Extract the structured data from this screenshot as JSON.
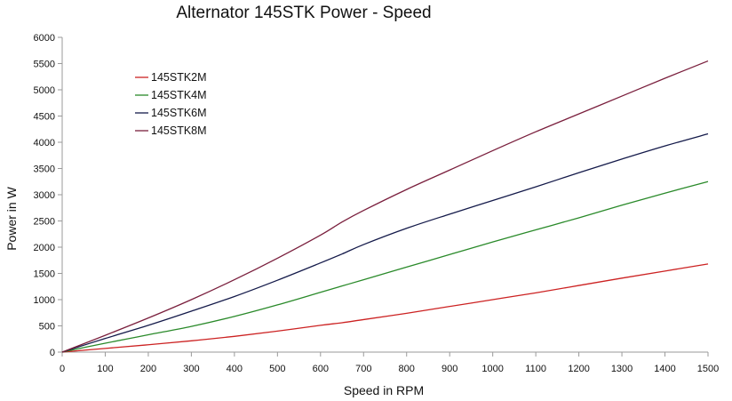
{
  "chart_data": {
    "type": "line",
    "title": "Alternator 145STK Power - Speed",
    "xlabel": "Speed in RPM",
    "ylabel": "Power in W",
    "xlim": [
      0,
      1500
    ],
    "ylim": [
      0,
      6000
    ],
    "x_ticks": [
      "0",
      "100",
      "200",
      "300",
      "400",
      "500",
      "600",
      "700",
      "800",
      "900",
      "1000",
      "1100",
      "1200",
      "1300",
      "1400",
      "1500"
    ],
    "y_ticks": [
      "0",
      "500",
      "1000",
      "1500",
      "2000",
      "2500",
      "3000",
      "3500",
      "4000",
      "4500",
      "5000",
      "5500",
      "6000"
    ],
    "grid": false,
    "legend_position": "top-left",
    "x": [
      0,
      100,
      200,
      300,
      400,
      500,
      600,
      650,
      700,
      800,
      900,
      1000,
      1100,
      1200,
      1300,
      1400,
      1500
    ],
    "series": [
      {
        "name": "145STK2M",
        "color": "#cc2222",
        "values": [
          0,
          70,
          140,
          215,
          300,
          400,
          510,
          560,
          620,
          740,
          870,
          1000,
          1130,
          1270,
          1410,
          1545,
          1680
        ]
      },
      {
        "name": "145STK4M",
        "color": "#2a8a2a",
        "values": [
          0,
          170,
          330,
          490,
          680,
          900,
          1140,
          1260,
          1380,
          1620,
          1860,
          2100,
          2330,
          2560,
          2800,
          3030,
          3250
        ]
      },
      {
        "name": "145STK6M",
        "color": "#141a4a",
        "values": [
          0,
          260,
          510,
          780,
          1060,
          1370,
          1700,
          1870,
          2050,
          2360,
          2630,
          2890,
          3150,
          3420,
          3680,
          3930,
          4160
        ]
      },
      {
        "name": "145STK8M",
        "color": "#7a1f3d",
        "values": [
          0,
          320,
          650,
          1000,
          1380,
          1790,
          2230,
          2480,
          2700,
          3100,
          3470,
          3840,
          4200,
          4540,
          4880,
          5220,
          5550
        ]
      }
    ]
  }
}
